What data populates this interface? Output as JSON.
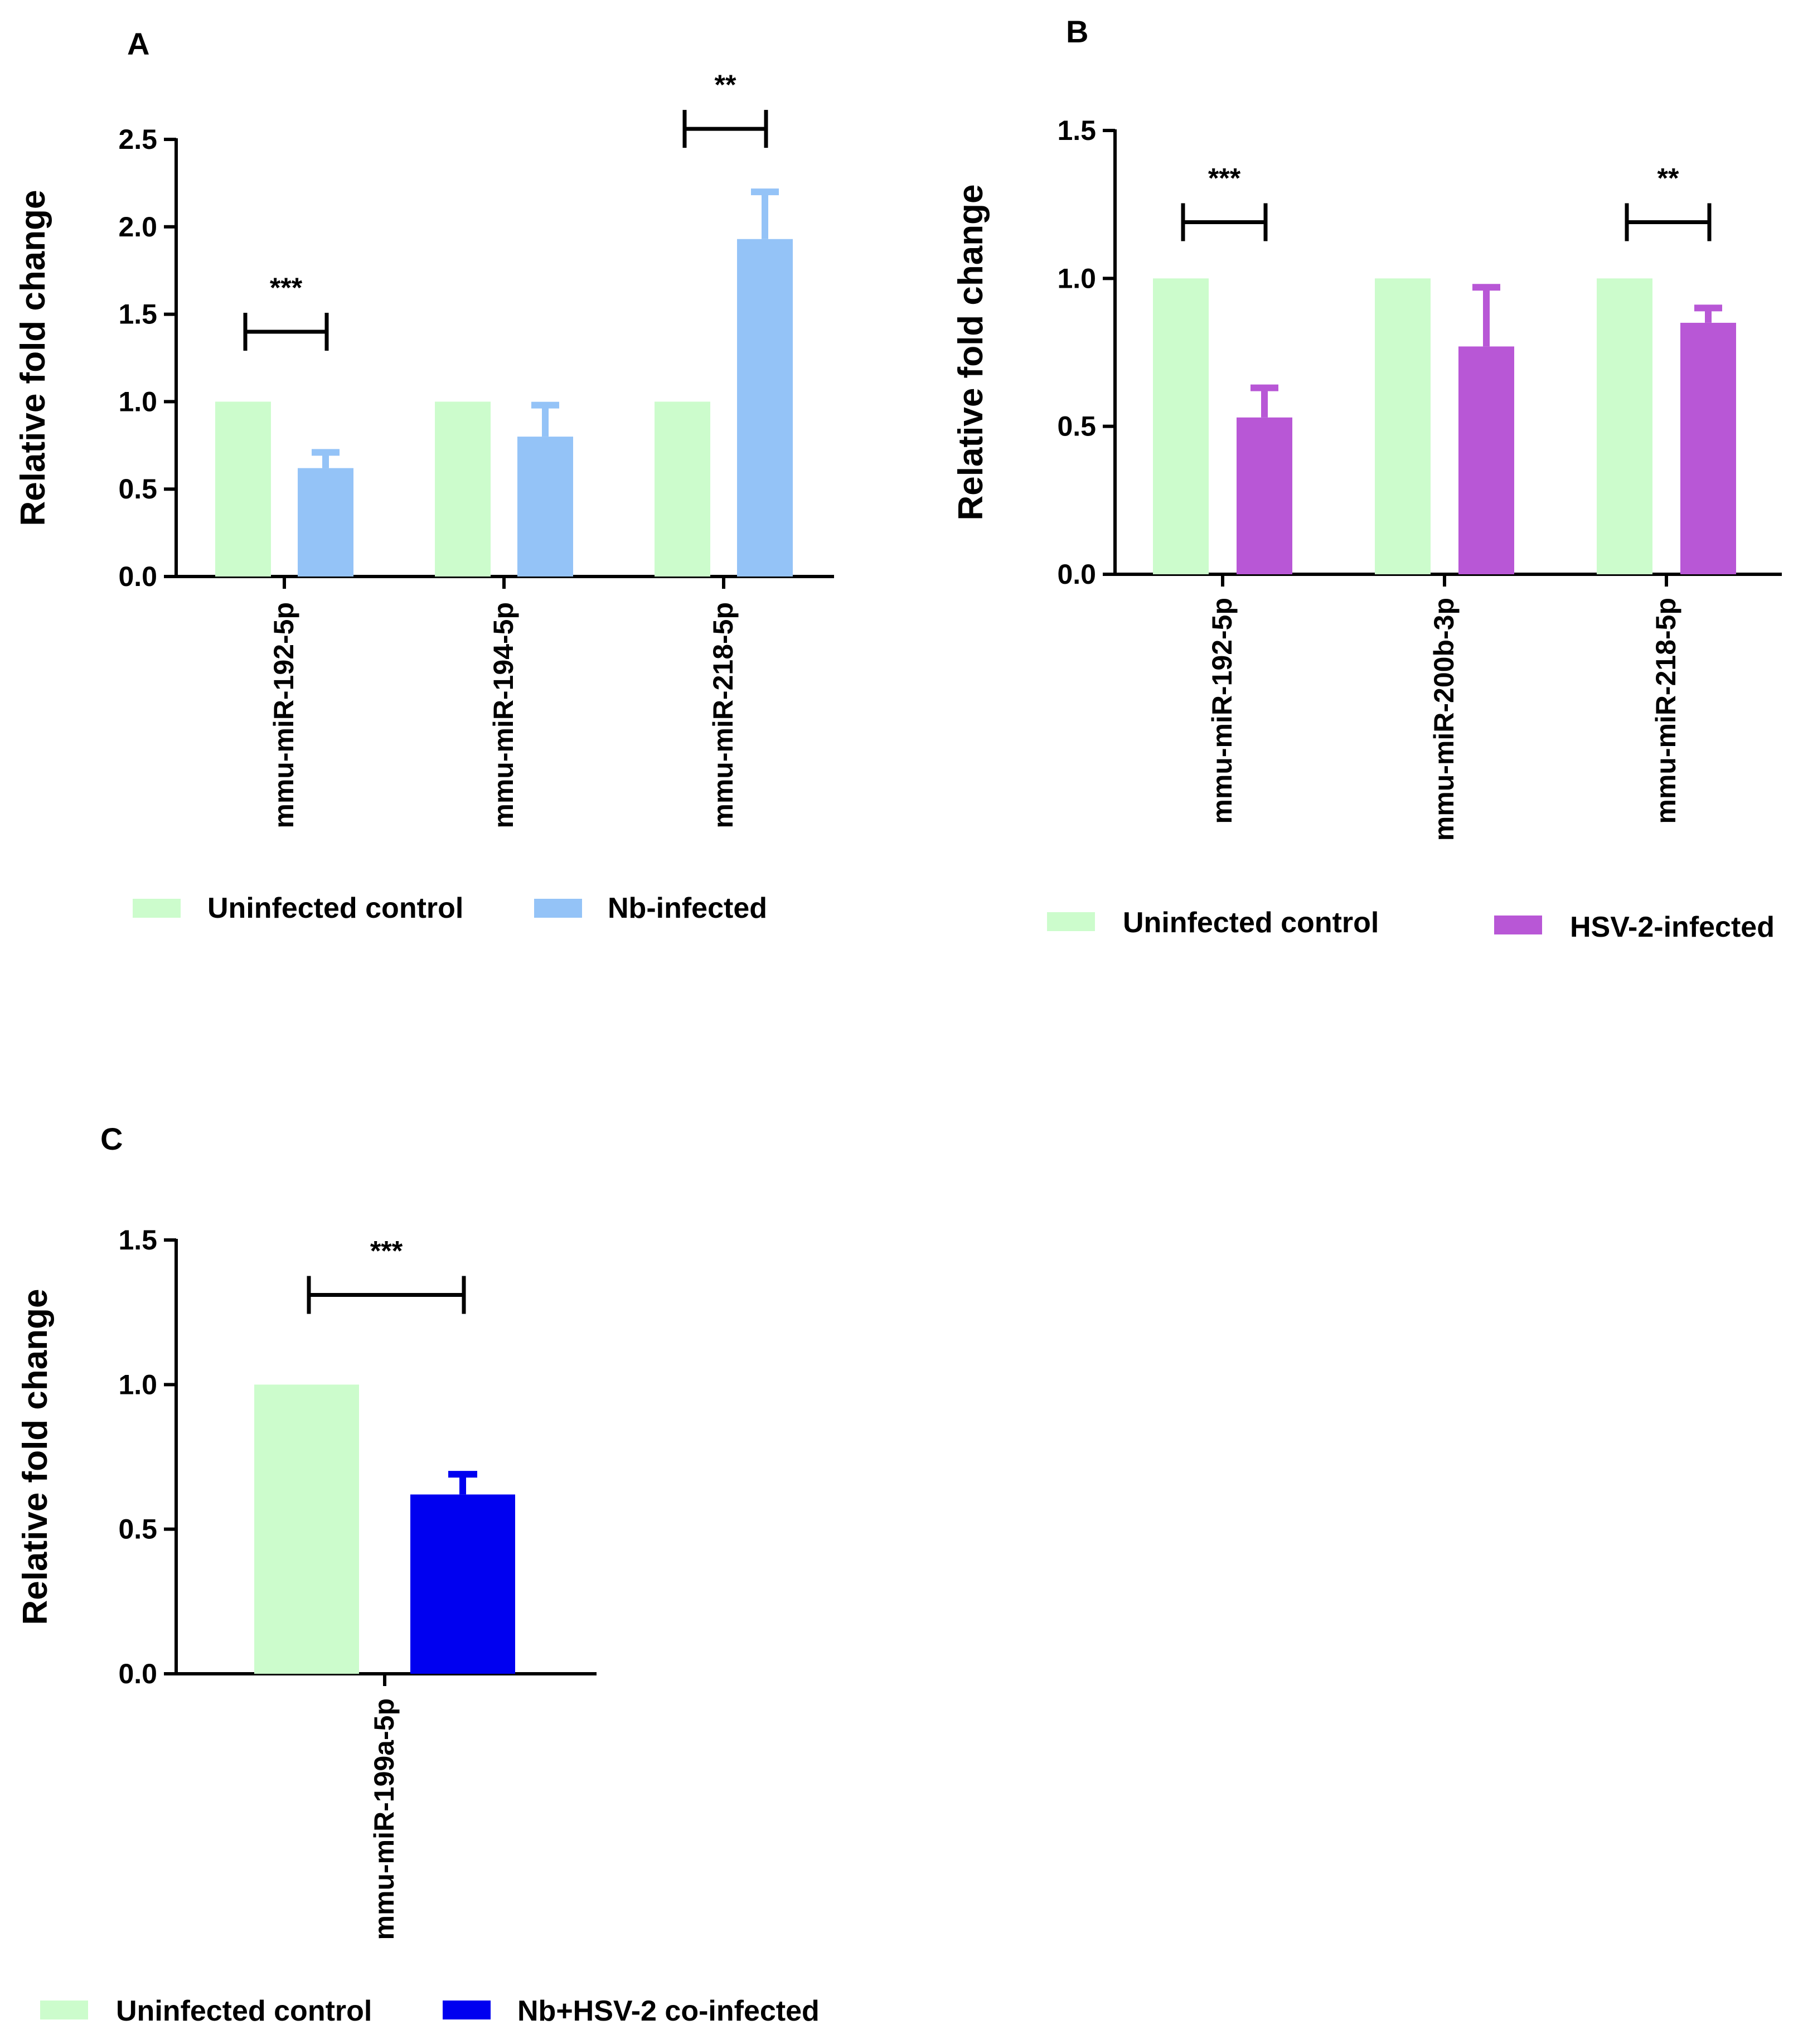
{
  "chart_data": [
    {
      "panel": "A",
      "type": "bar",
      "ylabel": "Relative fold change",
      "ylim": [
        0,
        2.5
      ],
      "yticks": [
        "0.0",
        "0.5",
        "1.0",
        "1.5",
        "2.0",
        "2.5"
      ],
      "categories": [
        "mmu-miR-192-5p",
        "mmu-miR-194-5p",
        "mmu-miR-218-5p"
      ],
      "series": [
        {
          "name": "Uninfected control",
          "color": "#ccfccc",
          "values": [
            1.0,
            1.0,
            1.0
          ],
          "errors": [
            0,
            0,
            0
          ]
        },
        {
          "name": "Nb-infected",
          "color": "#94c3f7",
          "values": [
            0.62,
            0.8,
            1.93
          ],
          "errors": [
            0.09,
            0.18,
            0.27
          ]
        }
      ],
      "significance": [
        {
          "category": 0,
          "label": "***",
          "y": 1.4
        },
        {
          "category": 2,
          "label": "**",
          "y": 2.56
        }
      ],
      "legend": [
        "Uninfected control",
        "Nb-infected"
      ]
    },
    {
      "panel": "B",
      "type": "bar",
      "ylabel": "Relative fold change",
      "ylim": [
        0,
        1.5
      ],
      "yticks": [
        "0.0",
        "0.5",
        "1.0",
        "1.5"
      ],
      "categories": [
        "mmu-miR-192-5p",
        "mmu-miR-200b-3p",
        "mmu-miR-218-5p"
      ],
      "series": [
        {
          "name": "Uninfected control",
          "color": "#ccfccc",
          "values": [
            1.0,
            1.0,
            1.0
          ],
          "errors": [
            0,
            0,
            0
          ]
        },
        {
          "name": "HSV-2-infected",
          "color": "#b857d6",
          "values": [
            0.53,
            0.77,
            0.85
          ],
          "errors": [
            0.1,
            0.2,
            0.05
          ]
        }
      ],
      "significance": [
        {
          "category": 0,
          "label": "***",
          "y": 1.19
        },
        {
          "category": 2,
          "label": "**",
          "y": 1.19
        }
      ],
      "legend": [
        "Uninfected control",
        "HSV-2-infected"
      ]
    },
    {
      "panel": "C",
      "type": "bar",
      "ylabel": "Relative fold change",
      "ylim": [
        0,
        1.5
      ],
      "yticks": [
        "0.0",
        "0.5",
        "1.0",
        "1.5"
      ],
      "categories": [
        "mmu-miR-199a-5p"
      ],
      "series": [
        {
          "name": "Uninfected control",
          "color": "#ccfccc",
          "values": [
            1.0
          ],
          "errors": [
            0
          ]
        },
        {
          "name": "Nb+HSV-2 co-infected",
          "color": "#0000f0",
          "values": [
            0.62
          ],
          "errors": [
            0.07
          ]
        }
      ],
      "significance": [
        {
          "category": 0,
          "label": "***",
          "y": 1.31
        }
      ],
      "legend": [
        "Uninfected control",
        "Nb+HSV-2 co-infected"
      ]
    }
  ]
}
